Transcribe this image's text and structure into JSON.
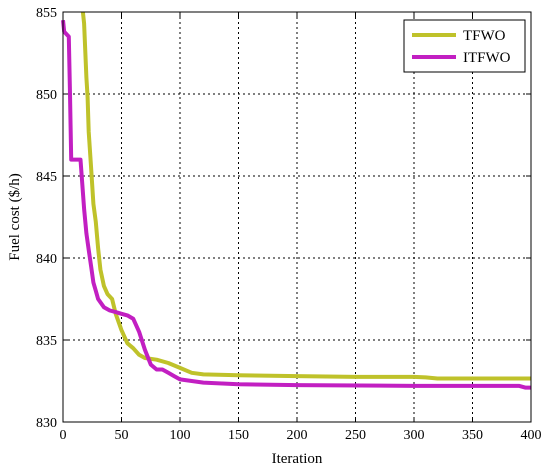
{
  "chart_data": {
    "type": "line",
    "title": "",
    "xlabel": "Iteration",
    "ylabel": "Fuel cost ($/h)",
    "xlim": [
      0,
      400
    ],
    "ylim": [
      830,
      855
    ],
    "xticks": [
      0,
      50,
      100,
      150,
      200,
      250,
      300,
      350,
      400
    ],
    "yticks": [
      830,
      835,
      840,
      845,
      850,
      855
    ],
    "grid": true,
    "legend_position": "top-right",
    "series": [
      {
        "name": "TFWO",
        "color": "#bfc22a",
        "points": [
          [
            17,
            855
          ],
          [
            18,
            854.3
          ],
          [
            20,
            851
          ],
          [
            21,
            849.8
          ],
          [
            22,
            847.7
          ],
          [
            24,
            845.5
          ],
          [
            26,
            843.3
          ],
          [
            28,
            842.2
          ],
          [
            30,
            840.6
          ],
          [
            32,
            839.3
          ],
          [
            35,
            838.3
          ],
          [
            38,
            837.8
          ],
          [
            42,
            837.5
          ],
          [
            45,
            836.6
          ],
          [
            50,
            835.6
          ],
          [
            55,
            834.8
          ],
          [
            60,
            834.5
          ],
          [
            65,
            834.1
          ],
          [
            70,
            833.9
          ],
          [
            80,
            833.8
          ],
          [
            90,
            833.6
          ],
          [
            100,
            833.3
          ],
          [
            110,
            833.0
          ],
          [
            120,
            832.9
          ],
          [
            150,
            832.85
          ],
          [
            200,
            832.8
          ],
          [
            250,
            832.75
          ],
          [
            300,
            832.75
          ],
          [
            310,
            832.72
          ],
          [
            320,
            832.65
          ],
          [
            400,
            832.65
          ]
        ]
      },
      {
        "name": "ITFWO",
        "color": "#c21fc2",
        "points": [
          [
            0,
            854.5
          ],
          [
            1,
            853.8
          ],
          [
            5,
            853.5
          ],
          [
            6,
            850.0
          ],
          [
            7,
            846.0
          ],
          [
            15,
            846.0
          ],
          [
            16,
            845.0
          ],
          [
            18,
            843.0
          ],
          [
            20,
            841.5
          ],
          [
            22,
            840.5
          ],
          [
            24,
            839.5
          ],
          [
            26,
            838.5
          ],
          [
            28,
            838.0
          ],
          [
            30,
            837.5
          ],
          [
            35,
            837.0
          ],
          [
            40,
            836.8
          ],
          [
            45,
            836.7
          ],
          [
            50,
            836.6
          ],
          [
            55,
            836.5
          ],
          [
            60,
            836.3
          ],
          [
            65,
            835.5
          ],
          [
            70,
            834.4
          ],
          [
            75,
            833.5
          ],
          [
            80,
            833.2
          ],
          [
            85,
            833.2
          ],
          [
            90,
            833.0
          ],
          [
            95,
            832.8
          ],
          [
            100,
            832.6
          ],
          [
            110,
            832.5
          ],
          [
            120,
            832.4
          ],
          [
            150,
            832.3
          ],
          [
            200,
            832.25
          ],
          [
            300,
            832.2
          ],
          [
            350,
            832.2
          ],
          [
            390,
            832.2
          ],
          [
            395,
            832.1
          ],
          [
            400,
            832.1
          ]
        ]
      }
    ]
  }
}
